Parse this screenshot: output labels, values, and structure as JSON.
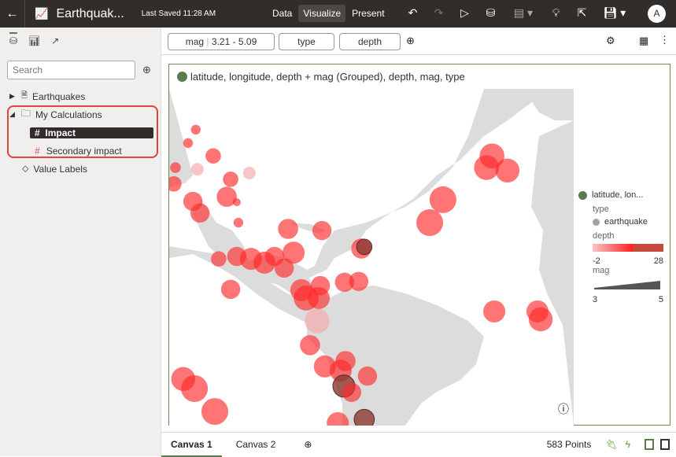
{
  "header": {
    "title": "Earthquak...",
    "last_saved": "Last Saved 11:28 AM",
    "nav": [
      "Data",
      "Visualize",
      "Present"
    ],
    "active_nav": "Visualize",
    "avatar": "A"
  },
  "sidebar": {
    "search_placeholder": "Search",
    "items": [
      {
        "label": "Earthquakes"
      },
      {
        "label": "My Calculations"
      },
      {
        "label": "Impact"
      },
      {
        "label": "Secondary impact"
      },
      {
        "label": "Value Labels"
      }
    ]
  },
  "filters": [
    {
      "label": "mag",
      "value": "3.21 - 5.09"
    },
    {
      "label": "type"
    },
    {
      "label": "depth"
    }
  ],
  "viz": {
    "title": "latitude, longitude, depth + mag (Grouped), depth, mag, type"
  },
  "legend": {
    "layer": "latitude, lon...",
    "type_label": "type",
    "type_value": "earthquake",
    "depth_label": "depth",
    "depth_min": "-2",
    "depth_max": "28",
    "mag_label": "mag",
    "mag_min": "3",
    "mag_max": "5",
    "layer_color": "#5b7a4e",
    "type_color": "#a0a4a8"
  },
  "canvas_tabs": [
    "Canvas 1",
    "Canvas 2"
  ],
  "points_count": "583 Points",
  "colors": {
    "accent": "#5b7a4e",
    "topbar": "#312d2a",
    "highlight": "#e0443e"
  },
  "chart_data": {
    "type": "scatter",
    "points": [
      [
        -117.0,
        45.8,
        3.2,
        10
      ],
      [
        -119.4,
        42.6,
        3.2,
        12
      ],
      [
        -111.6,
        39.5,
        3.8,
        8
      ],
      [
        -123.3,
        36.7,
        3.3,
        10
      ],
      [
        -116.5,
        36.3,
        3.5,
        2
      ],
      [
        -106.2,
        33.9,
        3.8,
        6
      ],
      [
        -100.4,
        35.4,
        3.5,
        1
      ],
      [
        -107.4,
        29.7,
        4.3,
        5
      ],
      [
        -123.8,
        32.8,
        3.8,
        12
      ],
      [
        -117.9,
        28.6,
        4.2,
        10
      ],
      [
        -115.7,
        25.8,
        4.2,
        11
      ],
      [
        -104.3,
        28.4,
        3.0,
        12
      ],
      [
        -103.8,
        23.5,
        3.2,
        14
      ],
      [
        -88.4,
        22.0,
        4.3,
        12
      ],
      [
        -77.9,
        21.6,
        4.2,
        10
      ],
      [
        -109.9,
        14.8,
        3.8,
        10
      ],
      [
        -104.3,
        15.4,
        4.2,
        12
      ],
      [
        -99.9,
        14.8,
        4.5,
        16
      ],
      [
        -95.7,
        13.9,
        4.5,
        14
      ],
      [
        -92.6,
        15.4,
        4.2,
        8
      ],
      [
        -86.7,
        16.3,
        4.5,
        7
      ],
      [
        -106.2,
        7.5,
        4.2,
        7
      ],
      [
        -89.6,
        12.6,
        4.2,
        8
      ],
      [
        -84.3,
        7.3,
        4.5,
        8
      ],
      [
        -78.4,
        8.4,
        4.2,
        10
      ],
      [
        -70.9,
        9.2,
        4.2,
        8
      ],
      [
        -66.5,
        9.4,
        4.2,
        7
      ],
      [
        -78.9,
        5.4,
        4.5,
        10
      ],
      [
        -82.8,
        5.4,
        4.8,
        9
      ],
      [
        -79.4,
        -0.1,
        4.8,
        2
      ],
      [
        -81.6,
        -5.9,
        4.3,
        10
      ],
      [
        -70.6,
        -9.7,
        4.3,
        11
      ],
      [
        -77.0,
        -11.0,
        4.5,
        10
      ],
      [
        -72.1,
        -12.0,
        4.5,
        13
      ],
      [
        -71.1,
        -15.7,
        4.5,
        27
      ],
      [
        -68.7,
        -17.2,
        4.2,
        14
      ],
      [
        -63.8,
        -13.3,
        4.2,
        9
      ],
      [
        -120.9,
        -14.0,
        4.7,
        10
      ],
      [
        -117.4,
        -16.3,
        5.0,
        11
      ],
      [
        -111.1,
        -21.8,
        5.0,
        10
      ],
      [
        -73.0,
        -24.6,
        4.5,
        12
      ],
      [
        -64.8,
        -23.7,
        4.3,
        28
      ],
      [
        -44.5,
        23.5,
        5.0,
        12
      ],
      [
        -40.4,
        29.0,
        5.0,
        10
      ],
      [
        -25.2,
        39.5,
        4.8,
        12
      ],
      [
        -26.9,
        36.7,
        4.8,
        12
      ],
      [
        -20.4,
        36.0,
        4.7,
        9
      ],
      [
        -11.1,
        2.2,
        4.5,
        8
      ],
      [
        -10.1,
        0.3,
        4.7,
        7
      ],
      [
        -24.5,
        2.2,
        4.5,
        8
      ],
      [
        -65.7,
        17.3,
        4.3,
        12
      ],
      [
        -64.8,
        17.7,
        3.8,
        26
      ]
    ],
    "fields": [
      "longitude",
      "latitude",
      "mag",
      "depth"
    ]
  }
}
